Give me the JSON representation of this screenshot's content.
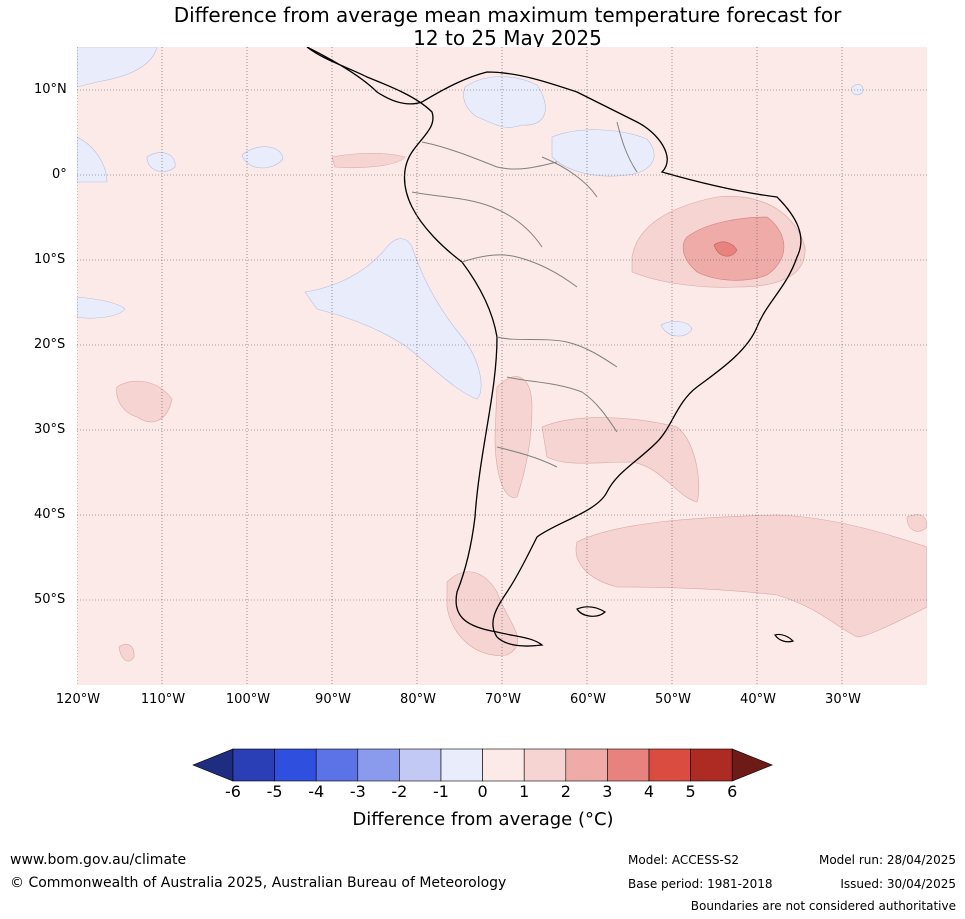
{
  "title_line1": "Difference from average mean maximum temperature forecast for",
  "title_line2": "12 to 25 May 2025",
  "map": {
    "lat_labels": [
      "10°N",
      "0°",
      "10°S",
      "20°S",
      "30°S",
      "40°S",
      "50°S"
    ],
    "lon_labels": [
      "120°W",
      "110°W",
      "100°W",
      "90°W",
      "80°W",
      "70°W",
      "60°W",
      "50°W",
      "40°W",
      "30°W"
    ],
    "extent": {
      "lon_min": -120,
      "lon_max": -20,
      "lat_min": -60,
      "lat_max": 15
    }
  },
  "colorbar": {
    "ticks": [
      "-6",
      "-5",
      "-4",
      "-3",
      "-2",
      "-1",
      "0",
      "1",
      "2",
      "3",
      "4",
      "5",
      "6"
    ],
    "colors": [
      "#1f2d80",
      "#2a3fb5",
      "#2f4fdf",
      "#5b73e6",
      "#8a9bee",
      "#c2c9f5",
      "#e9ecfb",
      "#fbeae8",
      "#f6d4d2",
      "#eeaba8",
      "#e8827e",
      "#db4c40",
      "#ad2b22",
      "#6e1a16"
    ],
    "label": "Difference from average (°C)"
  },
  "footer": {
    "website": "www.bom.gov.au/climate",
    "copyright": "© Commonwealth of Australia 2025, Australian Bureau of Meteorology",
    "model": "Model: ACCESS-S2",
    "base_period": "Base period: 1981-2018",
    "model_run": "Model run: 28/04/2025",
    "issued": "Issued: 30/04/2025",
    "disclaimer": "Boundaries are not considered authoritative"
  }
}
